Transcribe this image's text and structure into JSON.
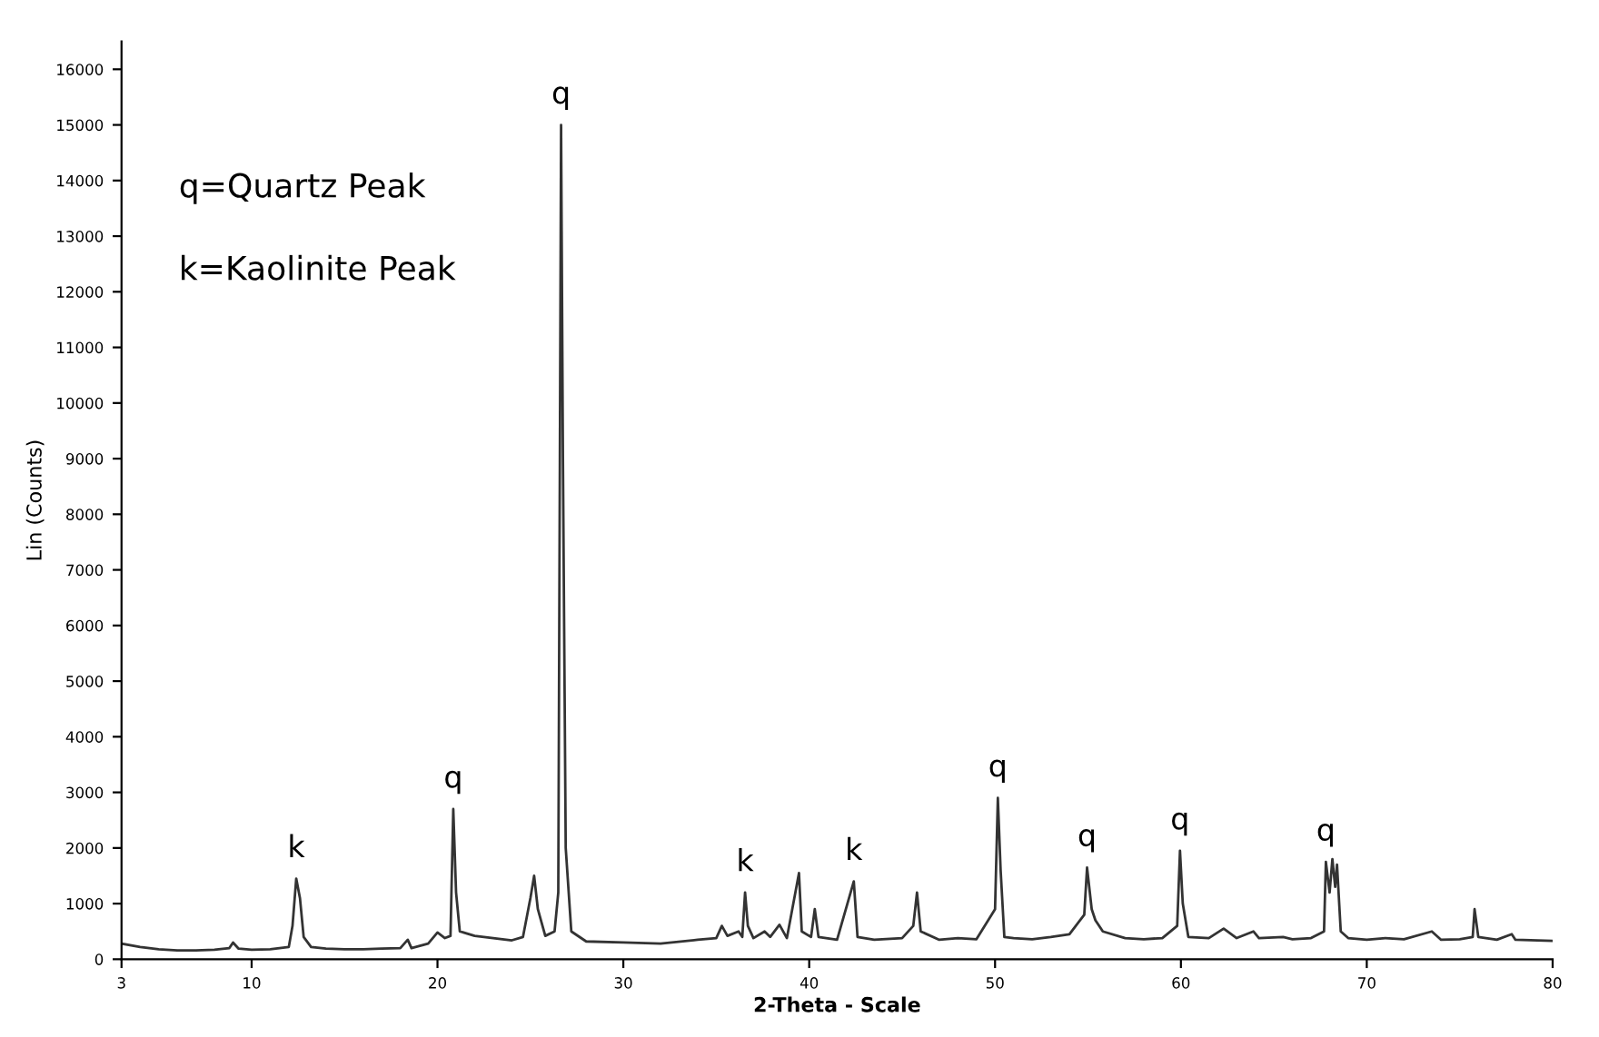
{
  "chart_data": {
    "type": "line",
    "xlabel": "2-Theta - Scale",
    "ylabel": "Lin (Counts)",
    "xlim": [
      3,
      80
    ],
    "xticks": [
      3,
      10,
      20,
      30,
      40,
      50,
      60,
      70,
      80
    ],
    "ylim": [
      0,
      16500
    ],
    "yticks": [
      0,
      1000,
      2000,
      3000,
      4000,
      5000,
      6000,
      7000,
      8000,
      9000,
      10000,
      11000,
      12000,
      13000,
      14000,
      15000,
      16000
    ],
    "grid": false,
    "marker": "none",
    "line_style": "solid",
    "series": [
      {
        "color": "#333333",
        "x": [
          3,
          4,
          5,
          6,
          7,
          8,
          8.8,
          9,
          9.3,
          10,
          11,
          12,
          12.2,
          12.4,
          12.6,
          12.8,
          13.2,
          14,
          15,
          16,
          17,
          18,
          18.4,
          18.6,
          19.5,
          20,
          20.4,
          20.7,
          20.85,
          21.0,
          21.2,
          22,
          23,
          24,
          24.6,
          25.0,
          25.2,
          25.4,
          25.8,
          26.3,
          26.5,
          26.65,
          26.75,
          26.9,
          27.2,
          28,
          30,
          32,
          34,
          35,
          35.3,
          35.6,
          36.2,
          36.4,
          36.55,
          36.7,
          37,
          37.6,
          37.9,
          38.4,
          38.8,
          39.45,
          39.6,
          40.1,
          40.3,
          40.5,
          41.5,
          42.4,
          42.6,
          43.5,
          45,
          45.6,
          45.8,
          46.0,
          47,
          48,
          49,
          50.0,
          50.15,
          50.3,
          50.5,
          51,
          52,
          53,
          54,
          54.8,
          54.95,
          55.2,
          55.4,
          55.8,
          57,
          58,
          59,
          59.8,
          59.95,
          60.1,
          60.4,
          61.5,
          62.3,
          63,
          63.9,
          64.2,
          65.5,
          66,
          67,
          67.7,
          67.8,
          68.0,
          68.15,
          68.3,
          68.4,
          68.6,
          69,
          70,
          71,
          72,
          73.5,
          74,
          75,
          75.7,
          75.8,
          76,
          77,
          77.8,
          78,
          80
        ],
        "values": [
          280,
          220,
          180,
          160,
          160,
          170,
          200,
          300,
          190,
          170,
          180,
          220,
          600,
          1450,
          1100,
          400,
          220,
          190,
          180,
          180,
          190,
          200,
          350,
          200,
          280,
          480,
          380,
          420,
          2700,
          1200,
          500,
          420,
          380,
          340,
          400,
          1100,
          1500,
          900,
          420,
          500,
          1200,
          15000,
          9000,
          2000,
          500,
          320,
          300,
          280,
          350,
          380,
          600,
          420,
          500,
          400,
          1200,
          600,
          380,
          500,
          400,
          620,
          380,
          1550,
          500,
          400,
          900,
          400,
          350,
          1400,
          400,
          350,
          380,
          600,
          1200,
          500,
          350,
          380,
          360,
          900,
          2900,
          1600,
          400,
          380,
          360,
          400,
          450,
          800,
          1650,
          900,
          700,
          500,
          380,
          360,
          380,
          600,
          1950,
          1000,
          400,
          380,
          550,
          380,
          500,
          380,
          400,
          360,
          380,
          500,
          1750,
          1200,
          1800,
          1300,
          1700,
          500,
          380,
          350,
          380,
          360,
          500,
          350,
          360,
          400,
          900,
          400,
          350,
          450,
          350,
          330
        ]
      }
    ],
    "annotations": [
      {
        "text": "q",
        "x": 26.65,
        "y": 15000
      },
      {
        "text": "k",
        "x": 12.4,
        "y": 1450
      },
      {
        "text": "q",
        "x": 20.85,
        "y": 2700
      },
      {
        "text": "k",
        "x": 36.55,
        "y": 1200
      },
      {
        "text": "k",
        "x": 42.4,
        "y": 1400
      },
      {
        "text": "q",
        "x": 50.15,
        "y": 2900
      },
      {
        "text": "q",
        "x": 54.95,
        "y": 1650
      },
      {
        "text": "q",
        "x": 59.95,
        "y": 1950
      },
      {
        "text": "q",
        "x": 67.8,
        "y": 1750
      },
      "q=Quartz Peak",
      "k=Kaolinite Peak"
    ]
  }
}
